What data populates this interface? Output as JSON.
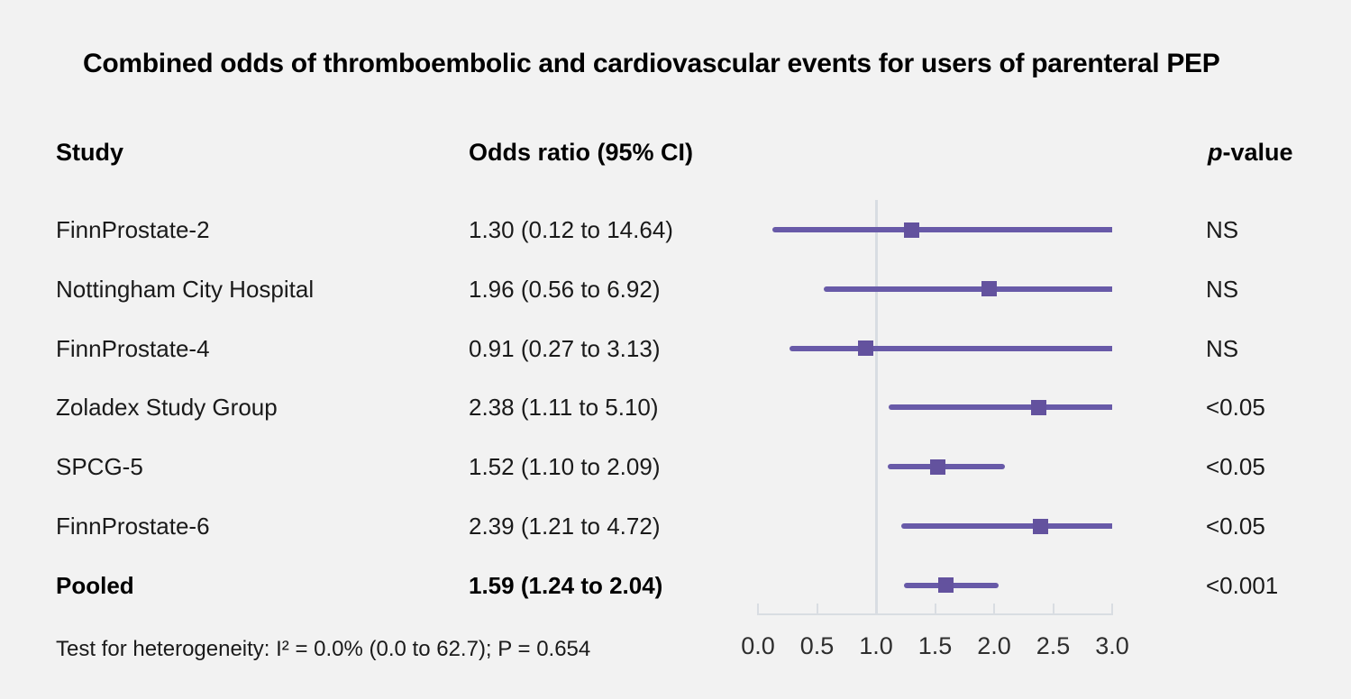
{
  "title": "Combined odds of thromboembolic and cardiovascular events for users of parenteral PEP",
  "columns": {
    "study": "Study",
    "odds_ratio": "Odds ratio (95% CI)",
    "pvalue_italic": "p",
    "pvalue_rest": "-value"
  },
  "footer": "Test for heterogeneity: I² = 0.0% (0.0 to 62.7); P = 0.654",
  "colors": {
    "background": "#f2f2f2",
    "ci_line": "#685aa8",
    "marker": "#63529e",
    "axis": "#d9dde2",
    "reference_line": "#d8dde2",
    "text": "#1a1a1a"
  },
  "chart_data": {
    "type": "forest",
    "title": "Combined odds of thromboembolic and cardiovascular events for users of parenteral PEP",
    "xlabel": "Odds ratio",
    "x_axis": {
      "min": 0.0,
      "max": 3.0,
      "tick_values": [
        0.0,
        0.5,
        1.0,
        1.5,
        2.0,
        2.5,
        3.0
      ],
      "tick_labels": [
        "0.0",
        "0.5",
        "1.0",
        "1.5",
        "2.0",
        "2.5",
        "3.0"
      ],
      "reference_line": 1.0
    },
    "rows": [
      {
        "study": "FinnProstate-2",
        "or": 1.3,
        "ci_low": 0.12,
        "ci_high": 14.64,
        "or_label": "1.30 (0.12 to 14.64)",
        "p_value": "NS",
        "bold": false
      },
      {
        "study": "Nottingham City Hospital",
        "or": 1.96,
        "ci_low": 0.56,
        "ci_high": 6.92,
        "or_label": "1.96 (0.56 to 6.92)",
        "p_value": "NS",
        "bold": false
      },
      {
        "study": "FinnProstate-4",
        "or": 0.91,
        "ci_low": 0.27,
        "ci_high": 3.13,
        "or_label": "0.91 (0.27 to 3.13)",
        "p_value": "NS",
        "bold": false
      },
      {
        "study": "Zoladex Study Group",
        "or": 2.38,
        "ci_low": 1.11,
        "ci_high": 5.1,
        "or_label": "2.38 (1.11 to 5.10)",
        "p_value": "<0.05",
        "bold": false
      },
      {
        "study": "SPCG-5",
        "or": 1.52,
        "ci_low": 1.1,
        "ci_high": 2.09,
        "or_label": "1.52 (1.10 to 2.09)",
        "p_value": "<0.05",
        "bold": false
      },
      {
        "study": "FinnProstate-6",
        "or": 2.39,
        "ci_low": 1.21,
        "ci_high": 4.72,
        "or_label": "2.39 (1.21 to 4.72)",
        "p_value": "<0.05",
        "bold": false
      },
      {
        "study": "Pooled",
        "or": 1.59,
        "ci_low": 1.24,
        "ci_high": 2.04,
        "or_label": "1.59 (1.24 to 2.04)",
        "p_value": "<0.001",
        "bold": true
      }
    ]
  }
}
